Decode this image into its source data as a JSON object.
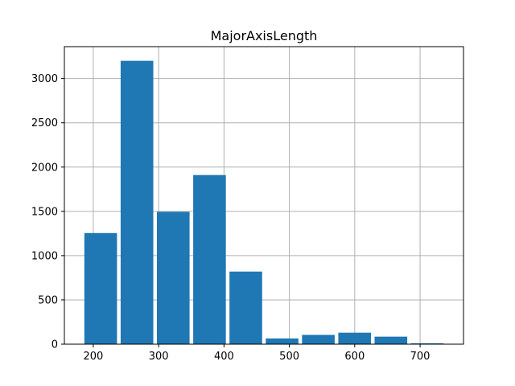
{
  "chart_data": {
    "type": "bar",
    "title": "MajorAxisLength",
    "xlabel": "",
    "ylabel": "",
    "bins": [
      {
        "x0": 183.6,
        "x1": 239.1,
        "count": 1255
      },
      {
        "x0": 239.1,
        "x1": 294.6,
        "count": 3200
      },
      {
        "x0": 294.6,
        "x1": 350.1,
        "count": 1495
      },
      {
        "x0": 350.1,
        "x1": 405.6,
        "count": 1910
      },
      {
        "x0": 405.6,
        "x1": 461.1,
        "count": 820
      },
      {
        "x0": 461.1,
        "x1": 516.6,
        "count": 65
      },
      {
        "x0": 516.6,
        "x1": 572.1,
        "count": 105
      },
      {
        "x0": 572.1,
        "x1": 627.6,
        "count": 130
      },
      {
        "x0": 627.6,
        "x1": 683.1,
        "count": 85
      },
      {
        "x0": 683.1,
        "x1": 738.6,
        "count": 10
      }
    ],
    "bar_width_fraction": 0.9,
    "xlim": [
      155.8,
      766.4
    ],
    "ylim": [
      0,
      3360
    ],
    "xticks": [
      200,
      300,
      400,
      500,
      600,
      700
    ],
    "yticks": [
      0,
      500,
      1000,
      1500,
      2000,
      2500,
      3000
    ],
    "grid": true,
    "legend": "none",
    "bar_color": "#1f77b4",
    "grid_color": "#b0b0b0"
  }
}
